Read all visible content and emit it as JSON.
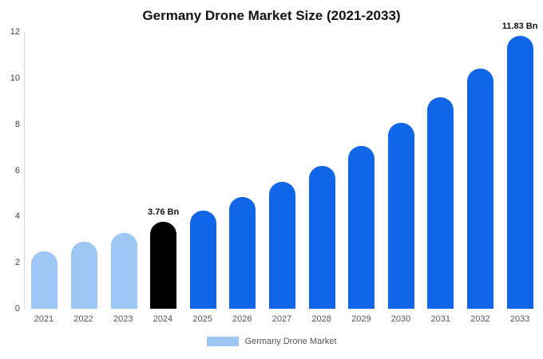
{
  "chart_data": {
    "type": "bar",
    "title": "Germany Drone Market Size (2021-2033)",
    "categories": [
      "2021",
      "2022",
      "2023",
      "2024",
      "2025",
      "2026",
      "2027",
      "2028",
      "2029",
      "2030",
      "2031",
      "2032",
      "2033"
    ],
    "values": [
      2.5,
      2.9,
      3.3,
      3.76,
      4.27,
      4.85,
      5.5,
      6.2,
      7.05,
      8.05,
      9.15,
      10.4,
      11.83
    ],
    "color_keys": [
      "past",
      "past",
      "past",
      "current",
      "forecast",
      "forecast",
      "forecast",
      "forecast",
      "forecast",
      "forecast",
      "forecast",
      "forecast",
      "forecast"
    ],
    "colors": {
      "past": "#9fc7f3",
      "current": "#000000",
      "forecast": "#1166e8"
    },
    "annotations": [
      {
        "index": 3,
        "text": "3.76 Bn"
      },
      {
        "index": 12,
        "text": "11.83 Bn"
      }
    ],
    "ylim": [
      0,
      12
    ],
    "yticks": [
      0,
      2,
      4,
      6,
      8,
      10,
      12
    ],
    "grid": false,
    "legend": "Germany Drone Market",
    "legend_position": "bottom"
  }
}
